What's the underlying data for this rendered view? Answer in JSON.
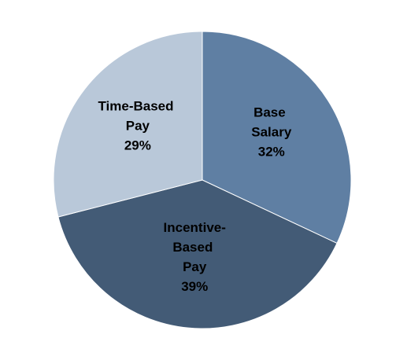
{
  "chart_data": {
    "type": "pie",
    "categories": [
      "Base Salary",
      "Incentive-Based Pay",
      "Time-Based Pay"
    ],
    "values": [
      32,
      39,
      29
    ],
    "value_labels": [
      "32%",
      "39%",
      "29%"
    ],
    "colors": [
      "#5f7fa3",
      "#435b76",
      "#b9c8d9"
    ]
  }
}
